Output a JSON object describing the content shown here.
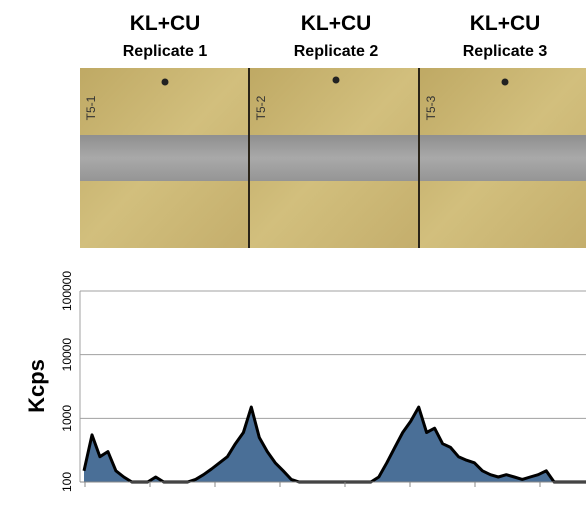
{
  "panels": [
    {
      "title": "KL+CU",
      "subtitle": "Replicate 1",
      "label": "T5-1"
    },
    {
      "title": "KL+CU",
      "subtitle": "Replicate 2",
      "label": "T5-2"
    },
    {
      "title": "KL+CU",
      "subtitle": "Replicate 3",
      "label": "T5-3"
    }
  ],
  "chart_data": {
    "type": "area",
    "ylabel": "Kcps",
    "categories": [
      null,
      null,
      null,
      null,
      null,
      null,
      null,
      null,
      null,
      null,
      null,
      null,
      null,
      null,
      null,
      null,
      null,
      null,
      null,
      null,
      null,
      null,
      null,
      null,
      null,
      null,
      null,
      null,
      null,
      null,
      null,
      null,
      null,
      null,
      null,
      null,
      null,
      null,
      null,
      null,
      null,
      null,
      null,
      null,
      null,
      null,
      null,
      null,
      null,
      null,
      null,
      null,
      null,
      null,
      null,
      null,
      null,
      null,
      null,
      null,
      null,
      null,
      null,
      null
    ],
    "values": [
      150,
      550,
      250,
      300,
      150,
      120,
      100,
      100,
      100,
      120,
      100,
      100,
      100,
      100,
      110,
      130,
      160,
      200,
      250,
      400,
      600,
      1500,
      500,
      300,
      200,
      150,
      110,
      100,
      100,
      100,
      100,
      100,
      100,
      100,
      100,
      100,
      100,
      120,
      200,
      350,
      600,
      900,
      1500,
      600,
      700,
      400,
      350,
      250,
      220,
      200,
      150,
      130,
      120,
      130,
      120,
      110,
      120,
      130,
      150,
      100,
      100,
      100,
      100,
      100
    ],
    "color": "#4a6f97",
    "ylim": [
      100,
      100000
    ],
    "yticks": [
      100,
      1000,
      10000,
      100000
    ],
    "log_scale": true,
    "grid": true
  }
}
